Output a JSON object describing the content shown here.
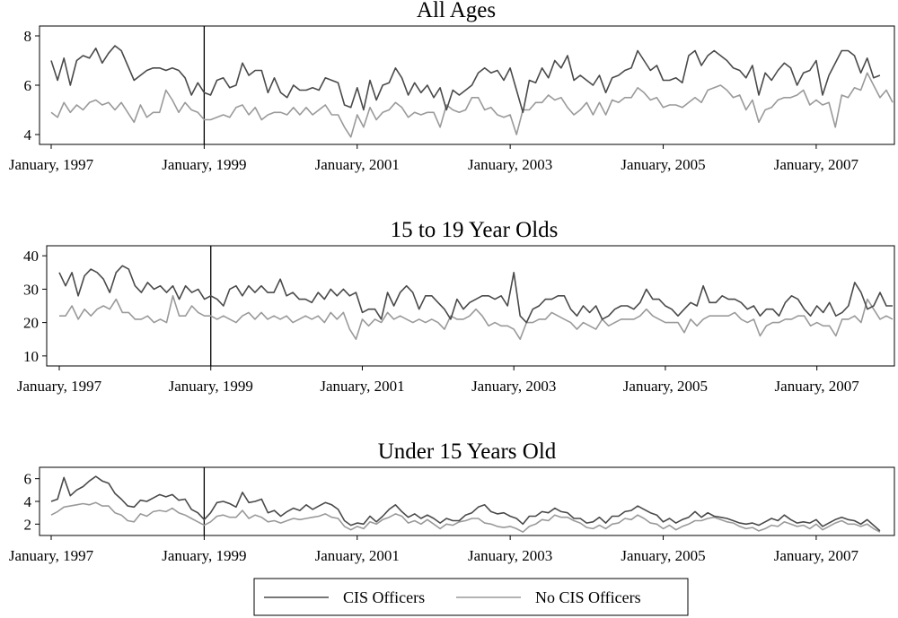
{
  "chart_data": [
    {
      "type": "line",
      "title": "All Ages",
      "xlabel": "",
      "ylabel": "",
      "xlim": [
        "1997-01",
        "2007-12"
      ],
      "ylim": [
        3.6,
        8.4
      ],
      "yticks": [
        4,
        6,
        8
      ],
      "xticks": [
        "January, 1997",
        "January, 1999",
        "January, 2001",
        "January, 2003",
        "January, 2005",
        "January, 2007"
      ],
      "reference_line_x": "1999-01",
      "grid": false,
      "legend": "bottom",
      "series": [
        {
          "name": "CIS Officers",
          "color": "#4a4a4a",
          "values": [
            7.0,
            6.2,
            7.1,
            6.0,
            7.0,
            7.2,
            7.1,
            7.5,
            6.9,
            7.3,
            7.6,
            7.4,
            6.8,
            6.2,
            6.4,
            6.6,
            6.7,
            6.7,
            6.6,
            6.7,
            6.6,
            6.3,
            5.6,
            6.1,
            5.7,
            5.6,
            6.2,
            6.3,
            5.9,
            6.0,
            6.9,
            6.4,
            6.6,
            6.6,
            5.7,
            6.3,
            5.7,
            5.5,
            6.0,
            5.8,
            5.8,
            5.9,
            5.8,
            6.3,
            6.2,
            6.1,
            5.2,
            5.1,
            5.9,
            5.0,
            6.2,
            5.4,
            6.0,
            6.1,
            6.7,
            6.3,
            5.6,
            6.1,
            5.7,
            6.0,
            5.5,
            5.9,
            5.0,
            5.8,
            5.6,
            5.8,
            6.0,
            6.5,
            6.7,
            6.5,
            6.6,
            6.2,
            6.7,
            5.8,
            4.9,
            6.2,
            6.1,
            6.7,
            6.3,
            7.0,
            6.7,
            7.2,
            6.2,
            6.4,
            6.2,
            6.0,
            6.4,
            5.7,
            6.3,
            6.4,
            6.6,
            6.7,
            7.4,
            7.0,
            6.6,
            6.8,
            6.2,
            6.2,
            6.3,
            6.1,
            7.2,
            7.4,
            6.8,
            7.2,
            7.4,
            7.2,
            7.0,
            6.7,
            6.6,
            6.3,
            6.8,
            5.6,
            6.5,
            6.2,
            6.6,
            6.9,
            6.7,
            6.0,
            6.5,
            6.6,
            7.0,
            5.6,
            6.4,
            6.9,
            7.4,
            7.4,
            7.2,
            6.5,
            7.1,
            6.3,
            6.4
          ]
        },
        {
          "name": "No CIS Officers",
          "color": "#9a9a9a",
          "values": [
            4.9,
            4.7,
            5.3,
            4.9,
            5.2,
            5.0,
            5.3,
            5.4,
            5.2,
            5.3,
            5.0,
            5.3,
            4.9,
            4.5,
            5.2,
            4.7,
            4.9,
            4.9,
            5.8,
            5.4,
            4.9,
            5.3,
            5.0,
            4.9,
            4.6,
            4.6,
            4.7,
            4.8,
            4.7,
            5.1,
            5.2,
            4.8,
            5.1,
            4.6,
            4.8,
            4.9,
            4.9,
            4.8,
            5.1,
            4.8,
            5.1,
            4.8,
            5.0,
            5.2,
            4.8,
            4.8,
            4.3,
            3.9,
            4.8,
            4.3,
            5.1,
            4.6,
            4.9,
            5.0,
            5.3,
            5.1,
            4.7,
            4.9,
            4.8,
            4.9,
            4.9,
            4.3,
            5.2,
            5.0,
            4.9,
            5.0,
            5.5,
            5.5,
            5.0,
            5.1,
            4.8,
            4.7,
            4.8,
            4.0,
            5.0,
            5.0,
            5.3,
            5.3,
            5.6,
            5.4,
            5.5,
            5.1,
            4.8,
            5.0,
            5.3,
            4.8,
            5.3,
            4.8,
            5.4,
            5.3,
            5.5,
            5.5,
            5.9,
            5.7,
            5.4,
            5.5,
            5.1,
            5.2,
            5.2,
            5.1,
            5.3,
            5.5,
            5.3,
            5.8,
            5.9,
            6.0,
            5.8,
            5.5,
            5.6,
            5.0,
            5.4,
            4.5,
            5.0,
            5.1,
            5.4,
            5.5,
            5.5,
            5.6,
            5.8,
            5.2,
            5.4,
            5.2,
            5.3,
            4.3,
            5.6,
            5.5,
            5.9,
            5.8,
            6.5,
            6.0,
            5.5,
            5.8,
            5.3
          ]
        }
      ]
    },
    {
      "type": "line",
      "title": "15 to 19 Year Olds",
      "xlabel": "",
      "ylabel": "",
      "xlim": [
        "1997-01",
        "2007-12"
      ],
      "ylim": [
        7,
        43
      ],
      "yticks": [
        10,
        20,
        30,
        40
      ],
      "xticks": [
        "January, 1997",
        "January, 1999",
        "January, 2001",
        "January, 2003",
        "January, 2005",
        "January, 2007"
      ],
      "reference_line_x": "1999-01",
      "grid": false,
      "legend": "bottom",
      "series": [
        {
          "name": "CIS Officers",
          "color": "#4a4a4a",
          "values": [
            35,
            31,
            35,
            28,
            34,
            36,
            35,
            33,
            29,
            35,
            37,
            36,
            31,
            29,
            32,
            30,
            31,
            29,
            31,
            27,
            31,
            29,
            30,
            27,
            28,
            27,
            25,
            30,
            31,
            28,
            31,
            29,
            31,
            29,
            29,
            33,
            28,
            29,
            27,
            27,
            26,
            29,
            27,
            30,
            28,
            30,
            28,
            29,
            23,
            24,
            24,
            21,
            29,
            25,
            29,
            31,
            29,
            24,
            28,
            28,
            26,
            24,
            21,
            27,
            24,
            26,
            27,
            28,
            28,
            27,
            28,
            25,
            35,
            22,
            20,
            24,
            25,
            27,
            27,
            28,
            28,
            24,
            22,
            25,
            23,
            25,
            21,
            22,
            24,
            25,
            25,
            24,
            26,
            30,
            27,
            27,
            25,
            24,
            22,
            24,
            26,
            25,
            31,
            26,
            26,
            28,
            27,
            27,
            26,
            24,
            25,
            22,
            24,
            24,
            22,
            26,
            28,
            27,
            24,
            22,
            25,
            23,
            26,
            22,
            23,
            25,
            32,
            29,
            24,
            25,
            29,
            25,
            25
          ]
        },
        {
          "name": "No CIS Officers",
          "color": "#9a9a9a",
          "values": [
            22,
            22,
            25,
            21,
            24,
            22,
            24,
            25,
            24,
            27,
            23,
            23,
            21,
            21,
            22,
            20,
            21,
            20,
            28,
            22,
            22,
            25,
            23,
            22,
            22,
            21,
            22,
            21,
            20,
            22,
            23,
            21,
            23,
            21,
            22,
            21,
            22,
            20,
            21,
            22,
            21,
            22,
            20,
            23,
            21,
            23,
            18,
            15,
            21,
            19,
            21,
            20,
            23,
            21,
            22,
            21,
            20,
            21,
            20,
            21,
            20,
            18,
            22,
            21,
            21,
            22,
            24,
            22,
            19,
            20,
            19,
            19,
            18,
            15,
            20,
            20,
            21,
            21,
            23,
            22,
            21,
            20,
            18,
            20,
            19,
            18,
            21,
            19,
            20,
            21,
            21,
            21,
            22,
            24,
            22,
            21,
            20,
            20,
            20,
            17,
            21,
            19,
            21,
            22,
            22,
            22,
            22,
            23,
            21,
            20,
            21,
            16,
            19,
            20,
            20,
            21,
            21,
            22,
            22,
            19,
            20,
            19,
            19,
            16,
            21,
            21,
            22,
            20,
            27,
            24,
            21,
            22,
            21
          ]
        }
      ]
    },
    {
      "type": "line",
      "title": "Under 15 Years Old",
      "xlabel": "",
      "ylabel": "",
      "xlim": [
        "1997-01",
        "2007-12"
      ],
      "ylim": [
        1.0,
        7.0
      ],
      "yticks": [
        2,
        4,
        6
      ],
      "xticks": [
        "January, 1997",
        "January, 1999",
        "January, 2001",
        "January, 2003",
        "January, 2005",
        "January, 2007"
      ],
      "reference_line_x": "1999-01",
      "grid": false,
      "legend": "bottom",
      "series": [
        {
          "name": "CIS Officers",
          "color": "#4a4a4a",
          "values": [
            4.0,
            4.2,
            6.1,
            4.5,
            5.0,
            5.3,
            5.8,
            6.2,
            5.8,
            5.6,
            4.7,
            4.2,
            3.6,
            3.5,
            4.1,
            4.0,
            4.3,
            4.6,
            4.4,
            4.6,
            4.1,
            4.2,
            3.3,
            3.0,
            2.4,
            3.0,
            3.9,
            4.0,
            3.8,
            3.5,
            4.8,
            3.9,
            4.0,
            4.2,
            3.0,
            3.2,
            2.7,
            3.1,
            3.4,
            3.2,
            3.7,
            3.3,
            3.6,
            3.9,
            3.7,
            3.3,
            2.3,
            1.9,
            2.1,
            2.0,
            2.7,
            2.2,
            2.7,
            3.3,
            3.7,
            3.1,
            2.6,
            2.9,
            2.5,
            2.8,
            2.5,
            2.1,
            2.5,
            2.3,
            2.3,
            2.8,
            3.0,
            3.5,
            3.7,
            3.1,
            2.9,
            3.0,
            2.7,
            2.5,
            2.0,
            2.7,
            2.7,
            3.1,
            3.0,
            3.4,
            3.1,
            3.0,
            2.5,
            2.5,
            2.1,
            2.2,
            2.6,
            2.1,
            2.7,
            2.7,
            3.1,
            3.2,
            3.6,
            3.3,
            3.0,
            2.8,
            2.2,
            2.5,
            2.1,
            2.4,
            2.6,
            3.1,
            2.6,
            3.0,
            2.7,
            2.6,
            2.5,
            2.3,
            2.1,
            2.0,
            2.1,
            1.9,
            2.2,
            2.5,
            2.3,
            2.8,
            2.4,
            2.1,
            2.2,
            2.1,
            2.4,
            1.8,
            2.1,
            2.4,
            2.6,
            2.4,
            2.3,
            2.0,
            2.4,
            1.9,
            1.4
          ]
        },
        {
          "name": "No CIS Officers",
          "color": "#9a9a9a",
          "values": [
            2.8,
            3.1,
            3.5,
            3.6,
            3.7,
            3.8,
            3.7,
            3.9,
            3.6,
            3.6,
            3.0,
            2.8,
            2.3,
            2.2,
            2.9,
            2.7,
            3.1,
            3.2,
            3.1,
            3.4,
            3.0,
            2.8,
            2.5,
            2.2,
            1.9,
            2.2,
            2.7,
            2.8,
            2.6,
            2.6,
            3.2,
            2.5,
            2.8,
            2.6,
            2.2,
            2.3,
            2.1,
            2.3,
            2.5,
            2.4,
            2.5,
            2.6,
            2.7,
            2.9,
            2.6,
            2.5,
            1.8,
            1.5,
            1.8,
            1.6,
            2.2,
            2.0,
            2.4,
            2.6,
            2.9,
            2.7,
            2.1,
            2.3,
            2.0,
            2.4,
            2.0,
            1.6,
            2.0,
            1.9,
            2.2,
            2.3,
            2.5,
            2.5,
            2.1,
            2.0,
            1.8,
            1.7,
            1.8,
            1.6,
            1.3,
            1.8,
            2.0,
            2.4,
            2.3,
            2.8,
            2.6,
            2.6,
            2.3,
            2.1,
            1.7,
            1.6,
            1.9,
            1.6,
            2.0,
            2.1,
            2.5,
            2.4,
            2.8,
            2.5,
            2.1,
            2.0,
            1.6,
            1.9,
            1.5,
            1.8,
            2.0,
            2.3,
            2.3,
            2.5,
            2.6,
            2.4,
            2.2,
            2.1,
            1.8,
            1.6,
            1.7,
            1.4,
            1.6,
            1.9,
            1.8,
            2.2,
            2.0,
            1.8,
            1.9,
            1.6,
            2.0,
            1.5,
            1.8,
            2.1,
            2.3,
            2.0,
            2.0,
            1.8,
            2.0,
            1.6,
            1.3
          ]
        }
      ]
    }
  ]
}
